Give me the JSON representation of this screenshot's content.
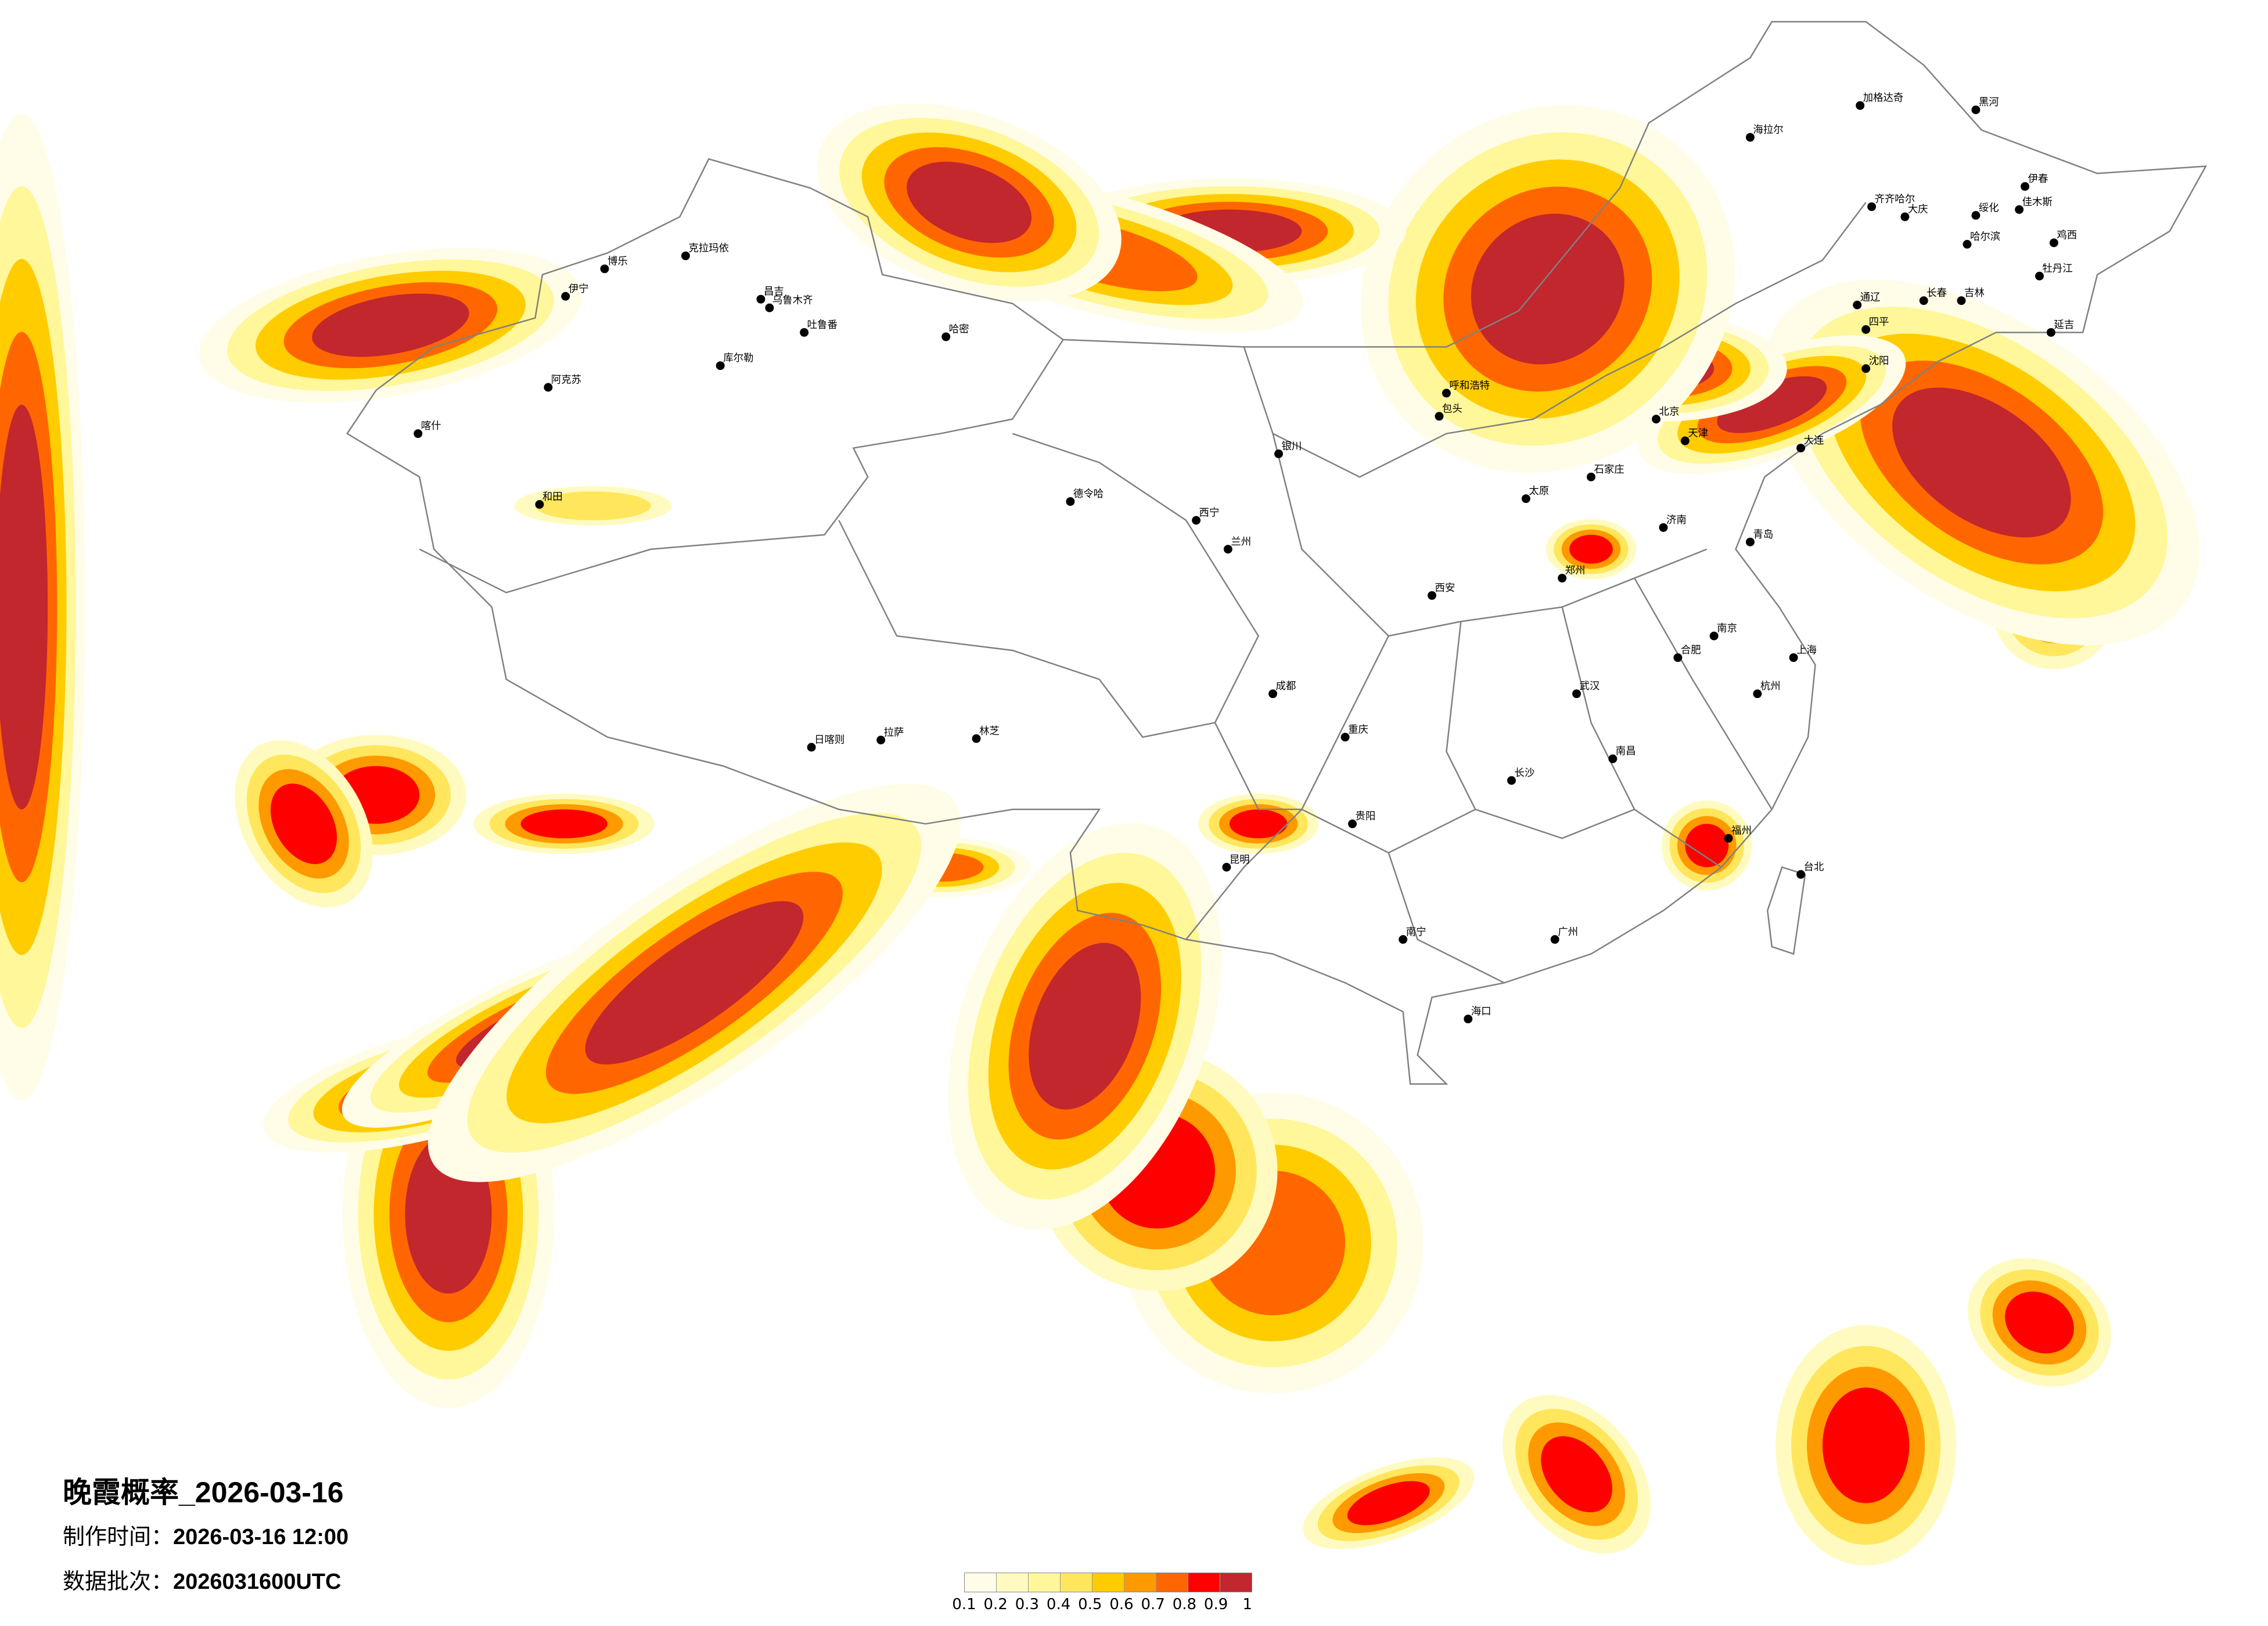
{
  "title": "晚霞概率_2026-03-16",
  "production_time": {
    "label": "制作时间：",
    "value": "2026-03-16 12:00"
  },
  "data_batch": {
    "label": "数据批次：",
    "value": "2026031600UTC"
  },
  "legend": {
    "labels": [
      "0.1",
      "0.2",
      "0.3",
      "0.4",
      "0.5",
      "0.6",
      "0.7",
      "0.8",
      "0.9",
      "1"
    ],
    "colors": [
      "#fffde8",
      "#fffbc0",
      "#fff799",
      "#ffe65c",
      "#ffcc00",
      "#ff9900",
      "#ff6600",
      "#ff0000",
      "#c1272d"
    ]
  },
  "colors": {
    "border": "#808080",
    "city_dot": "#000000"
  },
  "cities": [
    "克拉玛依",
    "博乐",
    "伊宁",
    "昌吉",
    "乌鲁木齐",
    "吐鲁番",
    "哈密",
    "库尔勒",
    "阿克苏",
    "喀什",
    "和田",
    "德令哈",
    "拉萨",
    "日喀则",
    "林芝",
    "西宁",
    "兰州",
    "银川",
    "呼和浩特",
    "包头",
    "北京",
    "天津",
    "石家庄",
    "太原",
    "济南",
    "郑州",
    "西安",
    "成都",
    "重庆",
    "武汉",
    "长沙",
    "南昌",
    "合肥",
    "南京",
    "上海",
    "杭州",
    "福州",
    "广州",
    "南宁",
    "昆明",
    "贵阳",
    "海口",
    "哈尔滨",
    "长春",
    "吉林",
    "沈阳",
    "大连",
    "青岛",
    "台北",
    "海拉尔",
    "加格达奇",
    "黑河",
    "齐齐哈尔",
    "大庆",
    "牡丹江",
    "伊春",
    "绥化",
    "佳木斯",
    "鸡西",
    "通辽",
    "四平",
    "延吉"
  ]
}
